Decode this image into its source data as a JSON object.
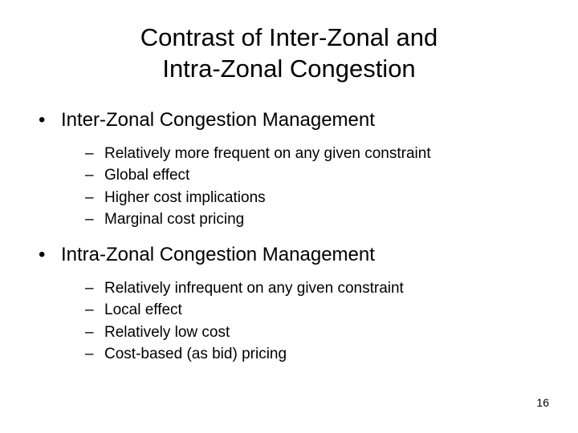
{
  "title_line1": "Contrast of Inter-Zonal and",
  "title_line2": "Intra-Zonal Congestion",
  "sections": [
    {
      "heading": "Inter-Zonal Congestion Management",
      "items": [
        "Relatively more frequent on any given constraint",
        "Global effect",
        "Higher cost implications",
        "Marginal cost pricing"
      ]
    },
    {
      "heading": "Intra-Zonal Congestion Management",
      "items": [
        "Relatively infrequent on any given constraint",
        "Local effect",
        "Relatively low cost",
        "Cost-based (as bid) pricing"
      ]
    }
  ],
  "page_number": "16",
  "bullet_glyph": "•",
  "dash_glyph": "–",
  "colors": {
    "background": "#ffffff",
    "text": "#000000"
  }
}
